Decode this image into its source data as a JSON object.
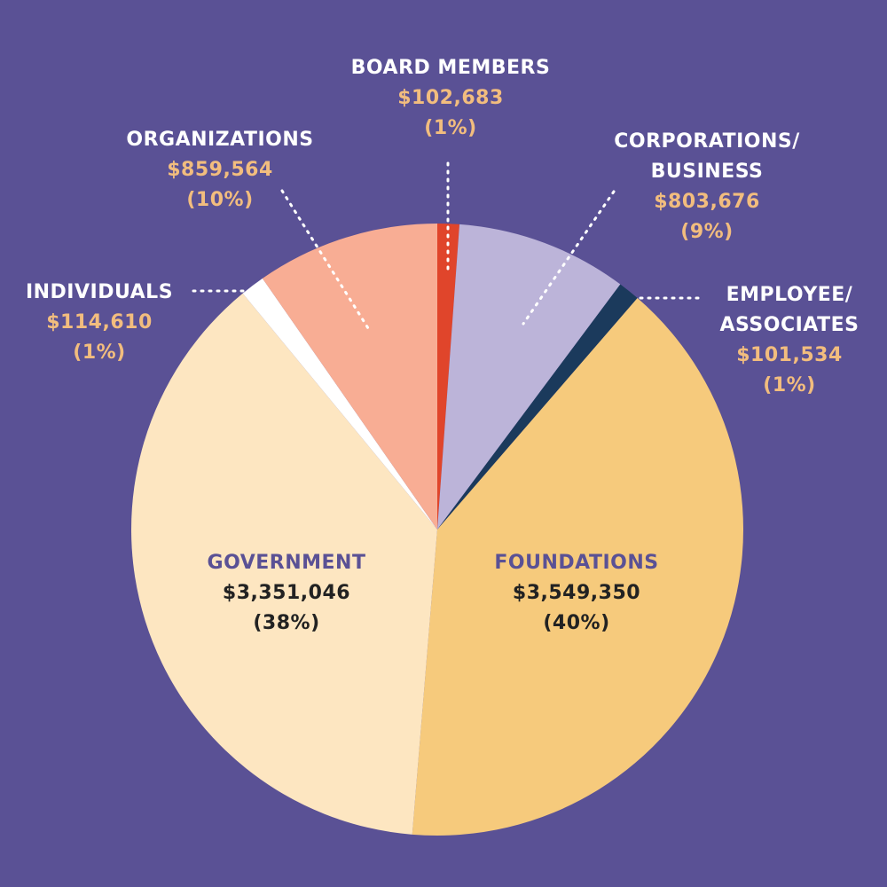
{
  "chart_data": {
    "type": "pie",
    "categories": [
      "BOARD MEMBERS",
      "CORPORATIONS/\nBUSINESS",
      "EMPLOYEE/\nASSOCIATES",
      "FOUNDATIONS",
      "GOVERNMENT",
      "INDIVIDUALS",
      "ORGANIZATIONS"
    ],
    "values": [
      102683,
      803676,
      101534,
      3549350,
      3351046,
      114610,
      859564
    ],
    "value_labels": [
      "$102,683",
      "$803,676",
      "$101,534",
      "$3,549,350",
      "$3,351,046",
      "$114,610",
      "$859,564"
    ],
    "share_labels": [
      "(1%)",
      "(9%)",
      "(1%)",
      "(40%)",
      "(38%)",
      "(1%)",
      "(10%)"
    ],
    "colors": [
      "#e0452b",
      "#bcb4d9",
      "#1b3a5c",
      "#f6ca7c",
      "#fde6c1",
      "#ffffff",
      "#f8ad94"
    ]
  }
}
